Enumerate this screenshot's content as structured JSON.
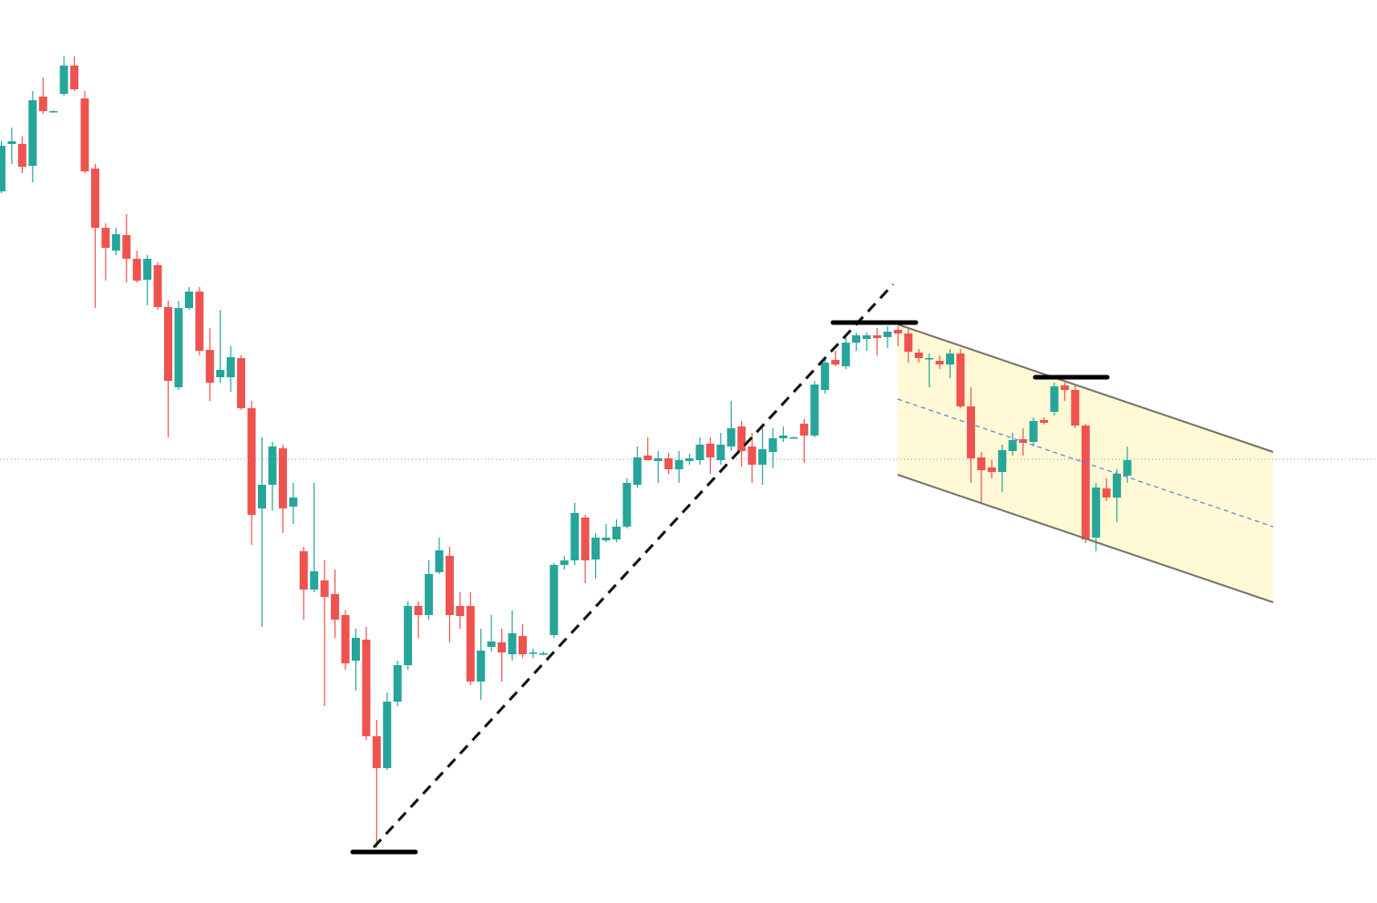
{
  "chart_data": {
    "type": "candlestick",
    "up_color": "#26a69a",
    "down_color": "#ef5350",
    "ylim": [
      9,
      1000
    ],
    "candles": [
      [
        790,
        845,
        788,
        840
      ],
      [
        842,
        860,
        820,
        845
      ],
      [
        842,
        850,
        810,
        817
      ],
      [
        818,
        900,
        800,
        890
      ],
      [
        894,
        915,
        875,
        878
      ],
      [
        878,
        879,
        877,
        878
      ],
      [
        897,
        938,
        895,
        928
      ],
      [
        928,
        938,
        900,
        902
      ],
      [
        892,
        900,
        810,
        812
      ],
      [
        815,
        820,
        662,
        750
      ],
      [
        750,
        755,
        692,
        728
      ],
      [
        725,
        750,
        720,
        743
      ],
      [
        742,
        765,
        690,
        716
      ],
      [
        716,
        725,
        690,
        692
      ],
      [
        693,
        720,
        665,
        716
      ],
      [
        709,
        712,
        660,
        663
      ],
      [
        663,
        670,
        520,
        582
      ],
      [
        575,
        670,
        572,
        662
      ],
      [
        662,
        685,
        660,
        680
      ],
      [
        680,
        685,
        610,
        615
      ],
      [
        616,
        640,
        560,
        580
      ],
      [
        586,
        660,
        580,
        594
      ],
      [
        586,
        620,
        570,
        608
      ],
      [
        607,
        610,
        550,
        552
      ],
      [
        552,
        560,
        402,
        435
      ],
      [
        442,
        520,
        312,
        468
      ],
      [
        468,
        515,
        440,
        510
      ],
      [
        508,
        512,
        415,
        442
      ],
      [
        444,
        470,
        425,
        454
      ],
      [
        395,
        400,
        320,
        353
      ],
      [
        353,
        470,
        350,
        373
      ],
      [
        363,
        385,
        225,
        345
      ],
      [
        348,
        375,
        300,
        320
      ],
      [
        325,
        330,
        265,
        272
      ],
      [
        275,
        310,
        242,
        300
      ],
      [
        298,
        312,
        188,
        192
      ],
      [
        192,
        210,
        70,
        157
      ],
      [
        157,
        240,
        155,
        230
      ],
      [
        230,
        275,
        225,
        270
      ],
      [
        270,
        340,
        265,
        335
      ],
      [
        335,
        340,
        300,
        325
      ],
      [
        325,
        385,
        320,
        370
      ],
      [
        372,
        410,
        370,
        396
      ],
      [
        390,
        400,
        295,
        325
      ],
      [
        335,
        350,
        310,
        324
      ],
      [
        335,
        350,
        248,
        252
      ],
      [
        252,
        310,
        232,
        286
      ],
      [
        290,
        325,
        285,
        296
      ],
      [
        295,
        310,
        252,
        284
      ],
      [
        282,
        330,
        275,
        305
      ],
      [
        302,
        315,
        278,
        282
      ],
      [
        284,
        288,
        278,
        284
      ],
      [
        283,
        285,
        281,
        283
      ],
      [
        303,
        382,
        300,
        380
      ],
      [
        380,
        390,
        375,
        385
      ],
      [
        385,
        448,
        380,
        437
      ],
      [
        432,
        435,
        360,
        385
      ],
      [
        386,
        415,
        365,
        410
      ],
      [
        407,
        425,
        405,
        410
      ],
      [
        408,
        430,
        405,
        422
      ],
      [
        422,
        475,
        420,
        470
      ],
      [
        468,
        510,
        465,
        498
      ],
      [
        500,
        520,
        495,
        495
      ],
      [
        494,
        505,
        470,
        497
      ],
      [
        497,
        503,
        480,
        485
      ],
      [
        485,
        505,
        470,
        495
      ],
      [
        494,
        502,
        490,
        497
      ],
      [
        495,
        520,
        490,
        512
      ],
      [
        513,
        520,
        480,
        498
      ],
      [
        495,
        525,
        490,
        512
      ],
      [
        510,
        560,
        505,
        530
      ],
      [
        532,
        538,
        488,
        505
      ],
      [
        510,
        525,
        470,
        490
      ],
      [
        490,
        530,
        468,
        507
      ],
      [
        504,
        530,
        486,
        519
      ],
      [
        519,
        532,
        515,
        522
      ],
      [
        520,
        521,
        519,
        520
      ],
      [
        535,
        540,
        492,
        522
      ],
      [
        522,
        582,
        520,
        578
      ],
      [
        572,
        607,
        568,
        602
      ],
      [
        605,
        615,
        598,
        600
      ],
      [
        598,
        630,
        595,
        624
      ],
      [
        624,
        635,
        615,
        632
      ],
      [
        628,
        635,
        615,
        632
      ],
      [
        632,
        640,
        610,
        629
      ],
      [
        630,
        642,
        618,
        636
      ],
      [
        638,
        642,
        620,
        634
      ],
      [
        634,
        640,
        602,
        614
      ],
      [
        613,
        617,
        602,
        607
      ],
      [
        607,
        612,
        575,
        607
      ],
      [
        604,
        610,
        595,
        600
      ],
      [
        600,
        617,
        585,
        612
      ],
      [
        612,
        617,
        552,
        554
      ],
      [
        554,
        575,
        470,
        497
      ],
      [
        498,
        504,
        448,
        484
      ],
      [
        487,
        495,
        475,
        482
      ],
      [
        482,
        512,
        460,
        506
      ],
      [
        505,
        525,
        500,
        517
      ],
      [
        518,
        530,
        500,
        514
      ],
      [
        515,
        542,
        510,
        538
      ],
      [
        539,
        542,
        534,
        536
      ],
      [
        548,
        580,
        544,
        576
      ],
      [
        577,
        580,
        560,
        572
      ],
      [
        572,
        578,
        530,
        533
      ],
      [
        533,
        535,
        404,
        408
      ],
      [
        410,
        470,
        395,
        465
      ],
      [
        464,
        475,
        450,
        454
      ],
      [
        454,
        485,
        427,
        480
      ],
      [
        478,
        510,
        470,
        495
      ]
    ]
  }
}
